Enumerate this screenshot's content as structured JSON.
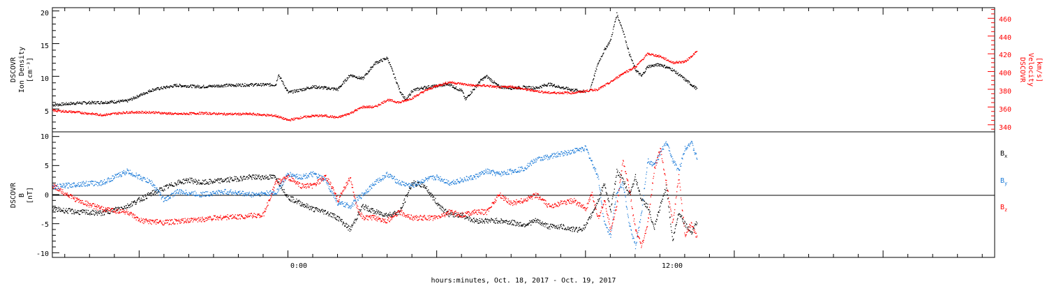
{
  "colors": {
    "black": "#000000",
    "red": "#ff0000",
    "blue": "#1a7ad8"
  },
  "chart_data": [
    {
      "type": "scatter",
      "panel": "plasma",
      "ylabel": [
        "DSCOVR",
        "Ion Density",
        "[cm⁻³]"
      ],
      "ylabel_right": [
        "DSCOVR",
        "Velocity",
        "[km/s]"
      ],
      "x_range_hours": [
        -19,
        57
      ],
      "xlim": [
        -19,
        57
      ],
      "ylim": [
        1.5,
        20.5
      ],
      "ylim_right": [
        332,
        472
      ],
      "yticks": [
        "5",
        "10",
        "15",
        "20"
      ],
      "yticks_right": [
        "340",
        "360",
        "380",
        "400",
        "420",
        "440",
        "460"
      ],
      "series": [
        {
          "axis": "left",
          "color": "#000000",
          "x": [
            -19,
            -17,
            -15,
            -13,
            -11,
            -9,
            -7,
            -5,
            -3,
            -1,
            -0.8,
            0,
            1,
            2,
            4,
            5,
            6,
            7,
            8,
            9,
            9.5,
            10,
            11,
            12,
            13,
            13.5,
            14,
            14.3,
            14.6,
            15,
            15.5,
            16,
            17,
            18,
            19,
            20,
            21,
            22,
            23,
            24
          ],
          "values": [
            5.6,
            5.9,
            6.0,
            6.2,
            7.9,
            8.6,
            8.4,
            8.6,
            8.7,
            8.7,
            10.3,
            7.5,
            7.9,
            8.4,
            8.0,
            10.2,
            9.6,
            12.0,
            12.8,
            7.8,
            6.3,
            7.8,
            8.3,
            8.5,
            8.8,
            8.2,
            7.8,
            6.4,
            7.2,
            8.1,
            9.3,
            10.0,
            8.4,
            8.2,
            8.3,
            8.2,
            8.8,
            8.3,
            7.9,
            7.6
          ]
        },
        {
          "axis": "left",
          "color": "#000000",
          "x": [
            24.3,
            25,
            25.5,
            26,
            26.5,
            27,
            27.5,
            28,
            28.5,
            29,
            30,
            31,
            32,
            33
          ],
          "values": [
            7.8,
            12.0,
            14.0,
            15.5,
            19.5,
            17.0,
            13.5,
            11.0,
            10.0,
            11.5,
            11.8,
            11.0,
            9.5,
            8.0
          ]
        },
        {
          "axis": "right",
          "color": "#ff0000",
          "x": [
            -19,
            -17,
            -15,
            -13,
            -11,
            -9,
            -7,
            -5,
            -3,
            -1,
            0,
            1,
            2,
            3,
            4,
            5,
            6,
            7,
            8,
            9,
            10,
            11,
            12,
            13,
            14,
            15,
            16,
            17,
            18,
            19,
            20,
            21,
            22,
            23,
            24,
            25,
            26,
            27,
            28,
            29,
            30,
            31,
            32,
            33
          ],
          "values": [
            356,
            354,
            351,
            354,
            354,
            352,
            353,
            352,
            352,
            350,
            345,
            348,
            350,
            350,
            348,
            353,
            360,
            360,
            368,
            365,
            370,
            378,
            384,
            388,
            386,
            384,
            384,
            382,
            383,
            380,
            378,
            376,
            376,
            376,
            378,
            380,
            388,
            398,
            405,
            420,
            417,
            410,
            411,
            423
          ]
        }
      ]
    },
    {
      "type": "scatter",
      "panel": "magnetic",
      "ylabel": [
        "DSCOVR",
        "B",
        "[nT]"
      ],
      "x_range_hours": [
        -19,
        57
      ],
      "xlim": [
        -19,
        57
      ],
      "ylim": [
        -10.8,
        10.8
      ],
      "yticks": [
        "-10",
        "-5",
        "0",
        "5",
        "10"
      ],
      "xtick_labels": [
        "0:00",
        "12:00"
      ],
      "xlabel": "hours:minutes, Oct. 18, 2017 - Oct. 19, 2017",
      "legend": [
        {
          "label": "B",
          "sub": "x",
          "color": "#000000"
        },
        {
          "label": "B",
          "sub": "y",
          "color": "#1a7ad8"
        },
        {
          "label": "B",
          "sub": "z",
          "color": "#ff0000"
        }
      ],
      "series": [
        {
          "name": "Bx",
          "color": "#000000",
          "x": [
            -19,
            -17,
            -15,
            -13,
            -11,
            -9,
            -8,
            -7,
            -5,
            -3,
            -1,
            0,
            1,
            2,
            3,
            4,
            5,
            6,
            7,
            8,
            9,
            10,
            11,
            12,
            13,
            14,
            15,
            16,
            17,
            18,
            19,
            20,
            21,
            22,
            23,
            23.5,
            24,
            25,
            25.5,
            26,
            26.5,
            27,
            27.5,
            28,
            28.5,
            29,
            29.5,
            30,
            30.5,
            31,
            31.5,
            32,
            32.5,
            33
          ],
          "values": [
            -2.5,
            -3.0,
            -3.2,
            -2.0,
            0.2,
            2.0,
            2.5,
            2.0,
            2.5,
            3.0,
            3.0,
            -0.5,
            -1.5,
            -2.5,
            -3.0,
            -4.0,
            -6.0,
            -2.0,
            -3.0,
            -3.5,
            -3.0,
            2.0,
            1.5,
            -1.5,
            -3.5,
            -3.5,
            -4.5,
            -4.5,
            -4.5,
            -4.8,
            -5.2,
            -4.5,
            -5.5,
            -5.5,
            -6.0,
            -6.0,
            -5.5,
            -1.0,
            2.0,
            -3.0,
            4.0,
            2.5,
            0.0,
            3.0,
            -1.0,
            -2.0,
            -6.0,
            -2.0,
            1.5,
            -8.0,
            -3.0,
            -5.0,
            -6.5,
            -4.5
          ]
        },
        {
          "name": "By",
          "color": "#1a7ad8",
          "x": [
            -19,
            -17,
            -15,
            -13,
            -11,
            -10,
            -9,
            -7,
            -5,
            -3,
            -1,
            0,
            1,
            2,
            3,
            4,
            5,
            6,
            7,
            8,
            9,
            10,
            11,
            12,
            13,
            14,
            15,
            16,
            17,
            18,
            19,
            20,
            21,
            22,
            23,
            24,
            25,
            25.5,
            26,
            26.5,
            27,
            27.5,
            28,
            28.5,
            29,
            29.5,
            30,
            30.5,
            31,
            31.5,
            32,
            32.5,
            33
          ],
          "values": [
            1.2,
            1.8,
            2.0,
            4.0,
            2.0,
            -1.0,
            0.5,
            0.0,
            0.5,
            0.0,
            0.3,
            3.5,
            3.0,
            3.5,
            2.5,
            -1.5,
            -2.0,
            0.0,
            2.0,
            3.5,
            2.0,
            1.5,
            2.5,
            3.0,
            2.0,
            2.5,
            3.0,
            4.0,
            3.5,
            4.0,
            4.5,
            6.0,
            6.5,
            7.0,
            7.5,
            8.0,
            3.0,
            -5.0,
            -7.0,
            0.5,
            2.0,
            -5.0,
            -9.0,
            -3.0,
            6.0,
            5.0,
            7.0,
            9.0,
            6.0,
            4.0,
            8.0,
            9.0,
            6.0
          ]
        },
        {
          "name": "Bz",
          "color": "#ff0000",
          "x": [
            -19,
            -17,
            -15,
            -13,
            -12,
            -10,
            -8,
            -6,
            -4,
            -2,
            -1,
            0,
            1,
            2,
            3,
            3.5,
            4,
            5,
            5.5,
            6,
            7,
            8,
            9,
            10,
            11,
            12,
            13,
            14,
            15,
            16,
            17,
            18,
            19,
            20,
            21,
            22,
            23,
            24,
            24.5,
            25,
            25.5,
            26,
            26.5,
            27,
            27.5,
            28,
            28.5,
            29,
            29.5,
            30,
            30.5,
            31,
            31.5,
            32,
            32.5,
            33
          ],
          "values": [
            1.5,
            -1.0,
            -2.5,
            -3.0,
            -4.5,
            -4.8,
            -4.5,
            -4.0,
            -3.8,
            -3.5,
            2.0,
            3.0,
            1.5,
            1.5,
            3.0,
            1.5,
            -1.0,
            3.0,
            -2.0,
            -4.0,
            -4.0,
            -4.5,
            -3.0,
            -4.0,
            -4.0,
            -4.0,
            -3.0,
            -3.5,
            -3.0,
            -3.0,
            0.0,
            -1.5,
            -1.0,
            0.0,
            -2.0,
            -1.5,
            -1.0,
            -2.5,
            0.0,
            -4.0,
            -1.0,
            -6.0,
            -2.0,
            6.0,
            1.0,
            -6.0,
            -9.0,
            -5.0,
            4.0,
            8.0,
            2.0,
            -5.0,
            3.0,
            -7.0,
            -5.0,
            -7.5
          ]
        }
      ]
    }
  ]
}
